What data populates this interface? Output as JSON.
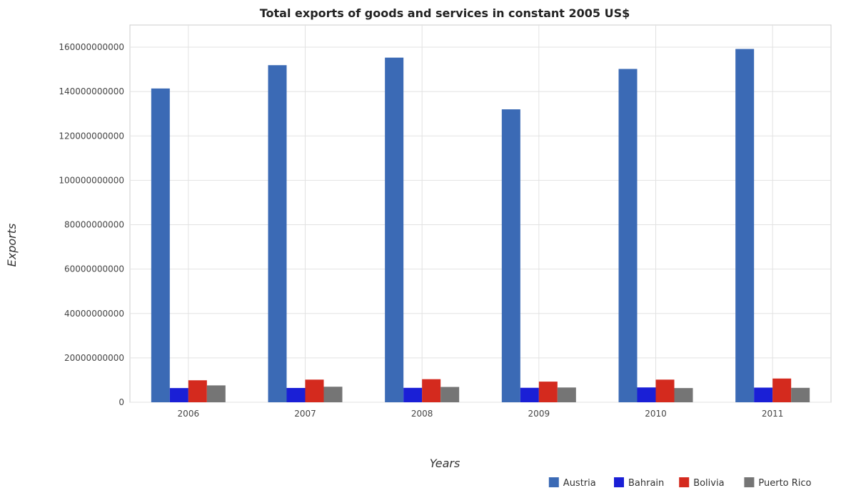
{
  "chart_data": {
    "type": "bar",
    "title": "Total exports of goods and services in constant 2005 US$",
    "xlabel": "Years",
    "ylabel": "Exports",
    "categories": [
      "2006",
      "2007",
      "2008",
      "2009",
      "2010",
      "2011"
    ],
    "ylim": [
      0,
      170000000000
    ],
    "yticks": [
      0,
      20000000000,
      40000000000,
      60000000000,
      80000000000,
      100000000000,
      120000000000,
      140000000000,
      160000000000
    ],
    "ytick_labels": [
      "0",
      "20000000000",
      "40000000000",
      "60000000000",
      "80000000000",
      "100000000000",
      "120000000000",
      "140000000000",
      "160000000000"
    ],
    "grid": true,
    "legend_position": "bottom-right",
    "series": [
      {
        "name": "Austria",
        "color": "#3b6ab5",
        "values": [
          141400000000,
          151900000000,
          155300000000,
          132000000000,
          150200000000,
          159200000000
        ]
      },
      {
        "name": "Bahrain",
        "color": "#1a1fd6",
        "values": [
          6400000000,
          6450000000,
          6500000000,
          6520000000,
          6680000000,
          6600000000
        ]
      },
      {
        "name": "Bolivia",
        "color": "#d42a1e",
        "values": [
          9900000000,
          10200000000,
          10400000000,
          9300000000,
          10200000000,
          10700000000
        ]
      },
      {
        "name": "Puerto Rico",
        "color": "#757575",
        "values": [
          7600000000,
          7000000000,
          6900000000,
          6650000000,
          6400000000,
          6500000000
        ]
      }
    ]
  }
}
